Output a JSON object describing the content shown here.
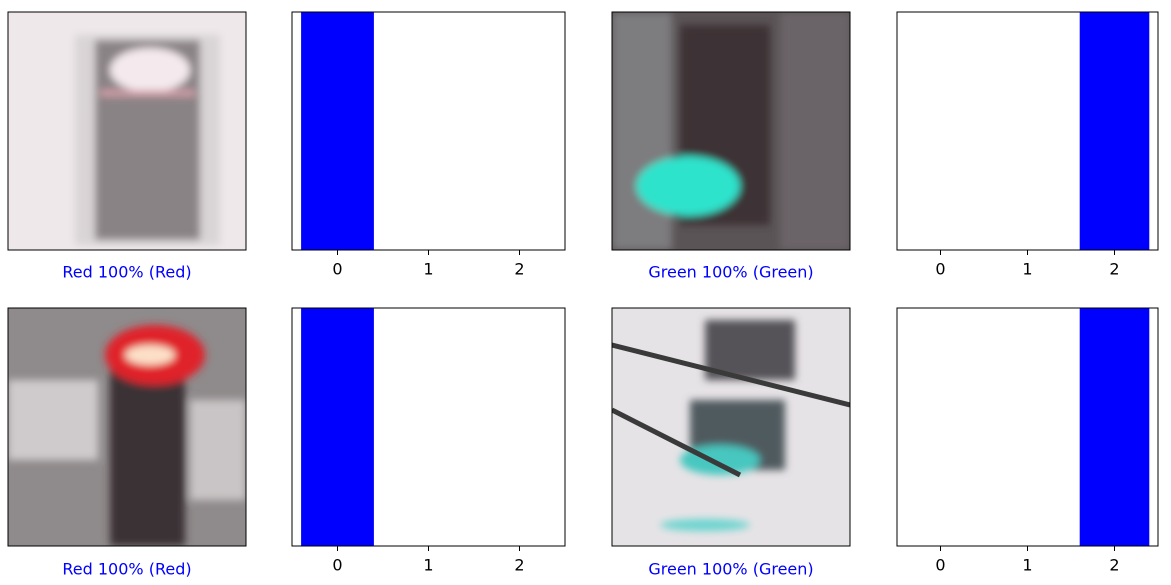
{
  "image_captions": [
    "Red 100% (Red)",
    "Green 100% (Green)",
    "Red 100% (Red)",
    "Green 100% (Green)"
  ],
  "chart_data": [
    {
      "type": "bar",
      "x": [
        0,
        1,
        2
      ],
      "values": [
        1,
        0,
        0
      ],
      "color": "#0000ff",
      "xlim": [
        -0.5,
        2.5
      ],
      "xticks": [
        0,
        1,
        2
      ],
      "ylim": [
        0,
        1
      ]
    },
    {
      "type": "bar",
      "x": [
        0,
        1,
        2
      ],
      "values": [
        0,
        0,
        1
      ],
      "color": "#0000ff",
      "xlim": [
        -0.5,
        2.5
      ],
      "xticks": [
        0,
        1,
        2
      ],
      "ylim": [
        0,
        1
      ]
    },
    {
      "type": "bar",
      "x": [
        0,
        1,
        2
      ],
      "values": [
        1,
        0,
        0
      ],
      "color": "#0000ff",
      "xlim": [
        -0.5,
        2.5
      ],
      "xticks": [
        0,
        1,
        2
      ],
      "ylim": [
        0,
        1
      ]
    },
    {
      "type": "bar",
      "x": [
        0,
        1,
        2
      ],
      "values": [
        0,
        0,
        1
      ],
      "color": "#0000ff",
      "xlim": [
        -0.5,
        2.5
      ],
      "xticks": [
        0,
        1,
        2
      ],
      "ylim": [
        0,
        1
      ]
    }
  ]
}
